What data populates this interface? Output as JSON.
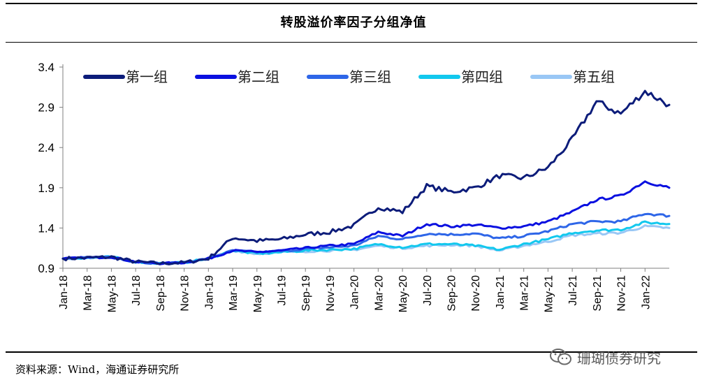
{
  "title": "转股溢价率因子分组净值",
  "source": "资料来源：Wind，海通证券研究所",
  "watermark": "珊瑚债券研究",
  "watermark_icon": "wechat-icon",
  "chart_data": {
    "type": "line",
    "title": "转股溢价率因子分组净值",
    "xlabel": "",
    "ylabel": "",
    "ylim": [
      0.9,
      3.4
    ],
    "yticks": [
      "3.4",
      "2.9",
      "2.4",
      "1.9",
      "1.4",
      "0.9"
    ],
    "ytick_values": [
      3.4,
      2.9,
      2.4,
      1.9,
      1.4,
      0.9
    ],
    "x": [
      "Jan-18",
      "Mar-18",
      "May-18",
      "Jul-18",
      "Sep-18",
      "Nov-18",
      "Jan-19",
      "Mar-19",
      "May-19",
      "Jul-19",
      "Sep-19",
      "Nov-19",
      "Jan-20",
      "Mar-20",
      "May-20",
      "Jul-20",
      "Sep-20",
      "Nov-20",
      "Jan-21",
      "Mar-21",
      "May-21",
      "Jul-21",
      "Sep-21",
      "Nov-21",
      "Jan-22"
    ],
    "x_end": "Feb-22",
    "legend_position": "top",
    "series": [
      {
        "name": "第一组",
        "color": "#0c1c7a",
        "values": [
          1.02,
          1.03,
          1.04,
          0.98,
          0.96,
          0.97,
          1.02,
          1.28,
          1.24,
          1.26,
          1.32,
          1.35,
          1.43,
          1.66,
          1.6,
          1.92,
          1.85,
          1.9,
          2.05,
          2.02,
          2.15,
          2.5,
          2.97,
          2.82,
          3.1
        ],
        "end": 2.93
      },
      {
        "name": "第二组",
        "color": "#0a10e0",
        "values": [
          1.02,
          1.03,
          1.04,
          0.98,
          0.96,
          0.97,
          1.02,
          1.12,
          1.1,
          1.12,
          1.15,
          1.18,
          1.2,
          1.35,
          1.3,
          1.45,
          1.42,
          1.44,
          1.4,
          1.42,
          1.48,
          1.6,
          1.75,
          1.8,
          1.98
        ],
        "end": 1.9
      },
      {
        "name": "第三组",
        "color": "#2e66e8",
        "values": [
          1.02,
          1.03,
          1.04,
          0.98,
          0.96,
          0.97,
          1.02,
          1.12,
          1.1,
          1.11,
          1.14,
          1.16,
          1.18,
          1.3,
          1.26,
          1.33,
          1.32,
          1.33,
          1.27,
          1.3,
          1.36,
          1.45,
          1.48,
          1.48,
          1.58
        ],
        "end": 1.55
      },
      {
        "name": "第四组",
        "color": "#12c8ee",
        "values": [
          1.02,
          1.03,
          1.04,
          0.98,
          0.96,
          0.97,
          1.02,
          1.12,
          1.08,
          1.1,
          1.12,
          1.13,
          1.14,
          1.2,
          1.16,
          1.2,
          1.2,
          1.18,
          1.13,
          1.2,
          1.26,
          1.34,
          1.37,
          1.38,
          1.47
        ],
        "end": 1.45
      },
      {
        "name": "第五组",
        "color": "#99c7f5",
        "values": [
          1.02,
          1.03,
          1.04,
          0.98,
          0.96,
          0.97,
          1.02,
          1.12,
          1.08,
          1.1,
          1.11,
          1.12,
          1.13,
          1.18,
          1.15,
          1.18,
          1.19,
          1.18,
          1.12,
          1.18,
          1.23,
          1.31,
          1.33,
          1.34,
          1.42
        ],
        "end": 1.4
      }
    ]
  }
}
